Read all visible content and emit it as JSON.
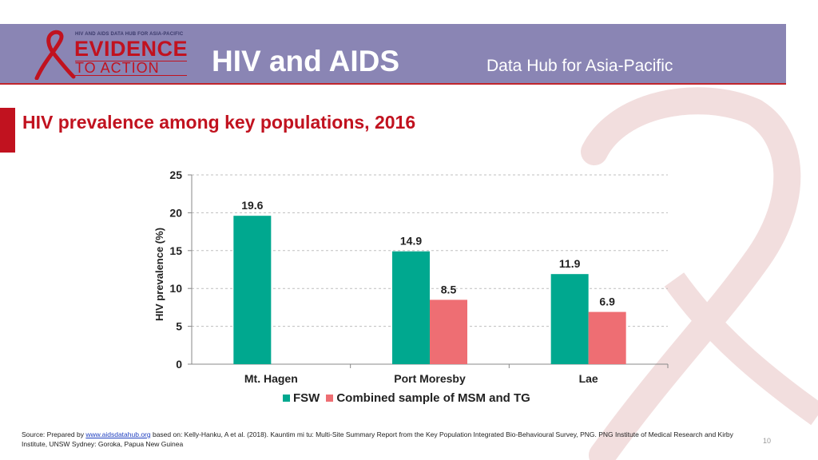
{
  "header": {
    "logo_top": "HIV AND AIDS DATA HUB FOR ASIA-PACIFIC",
    "logo_line1": "EVIDENCE",
    "logo_line2": "TO ACTION",
    "title": "HIV and AIDS",
    "subtitle": "Data Hub for Asia-Pacific"
  },
  "slide_title": "HIV prevalence among key populations, 2016",
  "colors": {
    "banner": "#8a85b4",
    "accent_red": "#c1121f",
    "fsw": "#00a88f",
    "msm_tg": "#ee6e73"
  },
  "chart_data": {
    "type": "bar",
    "categories": [
      "Mt. Hagen",
      "Port Moresby",
      "Lae"
    ],
    "series": [
      {
        "name": "FSW",
        "values": [
          19.6,
          14.9,
          11.9
        ],
        "color": "#00a88f"
      },
      {
        "name": "Combined sample of MSM and TG",
        "values": [
          null,
          8.5,
          6.9
        ],
        "color": "#ee6e73"
      }
    ],
    "ylabel": "HIV prevalence (%)",
    "xlabel": "",
    "ylim": [
      0,
      25
    ],
    "yticks": [
      0,
      5,
      10,
      15,
      20,
      25
    ],
    "grid": true,
    "legend": "bottom"
  },
  "source": {
    "prefix": "Source: Prepared by ",
    "link": "www.aidsdatahub.org",
    "rest": "  based on: Kelly-Hanku, A et al. (2018). Kauntim mi tu: Multi-Site Summary Report from the Key Population Integrated Bio-Behavioural Survey, PNG. PNG Institute of Medical Research and Kirby Institute, UNSW Sydney: Goroka, Papua New Guinea"
  },
  "page_number": "10"
}
